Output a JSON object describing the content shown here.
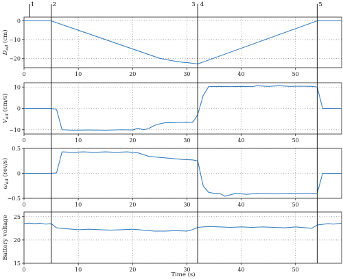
{
  "chart_data": {
    "type": "line",
    "shared_x": {
      "xlabel": "Time (s)",
      "xlim": [
        0,
        58.5
      ],
      "xticks": [
        0,
        10,
        20,
        30,
        40,
        50
      ],
      "grid": "dotted"
    },
    "events": [
      {
        "label": "1",
        "x": 1
      },
      {
        "label": "2",
        "x": 5
      },
      {
        "label": "3",
        "x": 31.8
      },
      {
        "label": "4",
        "x": 32.2
      },
      {
        "label": "5",
        "x": 54
      }
    ],
    "event_lines_x": [
      5,
      32,
      54
    ],
    "panels": [
      {
        "ylabel_main": "D",
        "ylabel_sub": "ad",
        "ylabel_unit": " (cm)",
        "ylim": [
          -25,
          2
        ],
        "yticks": [
          -20,
          -10,
          0
        ],
        "series": [
          {
            "x": [
              0,
              5,
              25,
              26,
              27,
              28,
              29,
              30,
              31,
              32,
              54,
              58.5
            ],
            "y": [
              0,
              0,
              -20,
              -20.6,
              -21.1,
              -21.6,
              -22.0,
              -22.3,
              -22.6,
              -23,
              0,
              0
            ]
          }
        ]
      },
      {
        "ylabel_main": "V",
        "ylabel_sub": "ad",
        "ylabel_unit": " (cm/s)",
        "ylim": [
          -12,
          12
        ],
        "yticks": [
          -10,
          0,
          10
        ],
        "series": [
          {
            "x": [
              0,
              5,
              6,
              7,
              9,
              12,
              15,
              18,
              20,
              21,
              22,
              23,
              24,
              25,
              26,
              27,
              28,
              29,
              30,
              31,
              31.5,
              32,
              33,
              34,
              36,
              38,
              40,
              42,
              43,
              45,
              47,
              49,
              51,
              53,
              54,
              55,
              58.5
            ],
            "y": [
              0,
              0,
              -0.5,
              -10,
              -10.2,
              -10.1,
              -10.2,
              -10.0,
              -10.1,
              -9.3,
              -10.0,
              -9.4,
              -8.0,
              -7.2,
              -6.7,
              -6.7,
              -6.6,
              -6.6,
              -6.5,
              -6.6,
              -5.0,
              -2.8,
              6.0,
              10.2,
              10.3,
              10.2,
              10.3,
              10.2,
              10.6,
              10.3,
              10.6,
              10.3,
              10.4,
              10.3,
              10.0,
              0,
              0
            ]
          }
        ]
      },
      {
        "ylabel_main": "ω",
        "ylabel_sub": "ad",
        "ylabel_unit": " (rev/s)",
        "ylim": [
          -0.5,
          0.5
        ],
        "yticks": [
          -0.5,
          0,
          0.5
        ],
        "series": [
          {
            "x": [
              0,
              5,
              6,
              7,
              9,
              11,
              13,
              15,
              17,
              19,
              21,
              23,
              25,
              27,
              29,
              31,
              32,
              33,
              34,
              35,
              36,
              37,
              39,
              41,
              43,
              45,
              47,
              49,
              51,
              53,
              54,
              55,
              58.5
            ],
            "y": [
              0,
              0,
              0.01,
              0.43,
              0.42,
              0.43,
              0.42,
              0.43,
              0.42,
              0.43,
              0.41,
              0.34,
              0.32,
              0.3,
              0.28,
              0.27,
              0.25,
              -0.25,
              -0.38,
              -0.4,
              -0.4,
              -0.46,
              -0.4,
              -0.42,
              -0.4,
              -0.41,
              -0.41,
              -0.4,
              -0.41,
              -0.4,
              -0.4,
              0,
              0
            ]
          }
        ]
      },
      {
        "ylabel_main": "Battery voltage",
        "ylabel_sub": "",
        "ylabel_unit": "",
        "ylim": [
          15,
          26
        ],
        "yticks": [
          15,
          20,
          25
        ],
        "series": [
          {
            "x": [
              0,
              1,
              2,
              3,
              4,
              5,
              6,
              8,
              10,
              12,
              14,
              16,
              18,
              20,
              22,
              24,
              26,
              28,
              30,
              31,
              32,
              34,
              36,
              38,
              40,
              42,
              44,
              46,
              48,
              50,
              52,
              53,
              54,
              56,
              57,
              58.5
            ],
            "y": [
              23.5,
              23.6,
              23.5,
              23.6,
              23.4,
              23.5,
              22.6,
              22.4,
              22.2,
              22.3,
              22.2,
              22.1,
              22.2,
              22.3,
              22.1,
              21.9,
              21.9,
              22.0,
              21.9,
              22.2,
              22.7,
              22.9,
              22.8,
              22.7,
              22.8,
              22.7,
              22.8,
              22.7,
              22.6,
              22.8,
              22.6,
              22.5,
              23.2,
              23.5,
              23.4,
              23.6
            ]
          }
        ]
      }
    ]
  }
}
